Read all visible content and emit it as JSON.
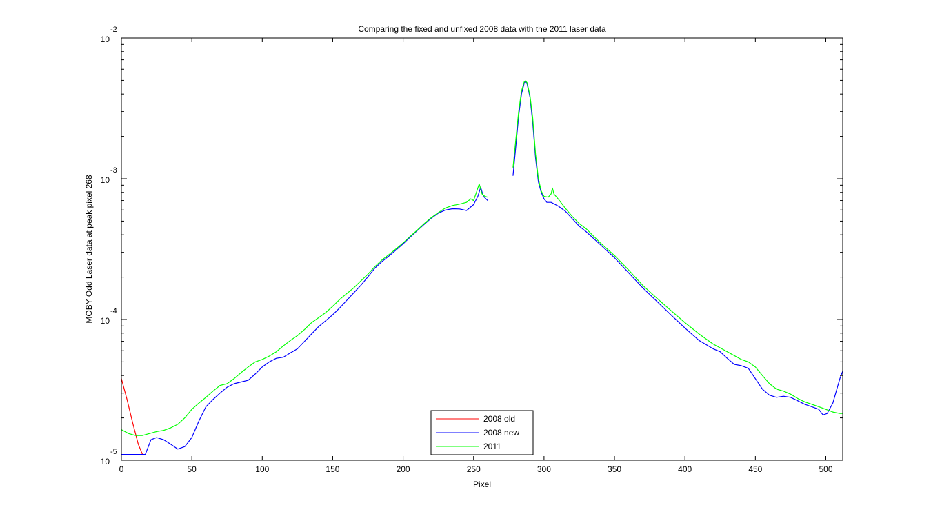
{
  "chart_data": {
    "type": "line",
    "title": "Comparing the fixed and unfixed 2008 data with the 2011 laser data",
    "xlabel": "Pixel",
    "ylabel": "MOBY Odd Laser data at peak pixel 268",
    "xlim": [
      0,
      512
    ],
    "ylim": [
      1e-05,
      0.01
    ],
    "yscale": "log",
    "grid": false,
    "legend_position": "bottom-center",
    "x_ticks": [
      0,
      50,
      100,
      150,
      200,
      250,
      300,
      350,
      400,
      450,
      500
    ],
    "x_tick_labels": [
      "0",
      "50",
      "100",
      "150",
      "200",
      "250",
      "300",
      "350",
      "400",
      "450",
      "500"
    ],
    "y_ticks": [
      {
        "value": 1e-05,
        "base": "10",
        "exponent": "-5"
      },
      {
        "value": 0.0001,
        "base": "10",
        "exponent": "-4"
      },
      {
        "value": 0.001,
        "base": "10",
        "exponent": "-3"
      },
      {
        "value": 0.01,
        "base": "10",
        "exponent": "-2"
      }
    ],
    "series": [
      {
        "name": "2008 old",
        "color": "#ff0000",
        "segments": [
          [
            [
              0,
              3.8e-05
            ],
            [
              4,
              2.7e-05
            ],
            [
              8,
              1.85e-05
            ],
            [
              12,
              1.3e-05
            ],
            [
              15,
              1.1e-05
            ],
            [
              17,
              1.1e-05
            ]
          ]
        ]
      },
      {
        "name": "2008 new",
        "color": "#0000ff",
        "segments": [
          [
            [
              0,
              1.1e-05
            ],
            [
              10,
              1.1e-05
            ],
            [
              17,
              1.1e-05
            ],
            [
              21,
              1.4e-05
            ],
            [
              25,
              1.45e-05
            ],
            [
              30,
              1.4e-05
            ],
            [
              35,
              1.3e-05
            ],
            [
              40,
              1.2e-05
            ],
            [
              45,
              1.25e-05
            ],
            [
              50,
              1.45e-05
            ],
            [
              55,
              1.9e-05
            ],
            [
              60,
              2.4e-05
            ],
            [
              65,
              2.7e-05
            ],
            [
              70,
              3e-05
            ],
            [
              75,
              3.3e-05
            ],
            [
              80,
              3.5e-05
            ],
            [
              85,
              3.6e-05
            ],
            [
              90,
              3.7e-05
            ],
            [
              95,
              4.1e-05
            ],
            [
              100,
              4.6e-05
            ],
            [
              105,
              5e-05
            ],
            [
              110,
              5.3e-05
            ],
            [
              115,
              5.4e-05
            ],
            [
              120,
              5.8e-05
            ],
            [
              125,
              6.2e-05
            ],
            [
              130,
              7e-05
            ],
            [
              135,
              7.9e-05
            ],
            [
              140,
              8.9e-05
            ],
            [
              145,
              9.8e-05
            ],
            [
              150,
              0.000108
            ],
            [
              155,
              0.000121
            ],
            [
              160,
              0.000137
            ],
            [
              165,
              0.000155
            ],
            [
              170,
              0.000175
            ],
            [
              175,
              0.000201
            ],
            [
              180,
              0.000232
            ],
            [
              185,
              0.000258
            ],
            [
              190,
              0.000283
            ],
            [
              195,
              0.000312
            ],
            [
              200,
              0.000345
            ],
            [
              205,
              0.000385
            ],
            [
              210,
              0.000428
            ],
            [
              215,
              0.000475
            ],
            [
              220,
              0.000525
            ],
            [
              225,
              0.00057
            ],
            [
              230,
              0.0006
            ],
            [
              235,
              0.000612
            ],
            [
              240,
              0.00061
            ],
            [
              245,
              0.000595
            ],
            [
              250,
              0.000655
            ],
            [
              253,
              0.00075
            ],
            [
              255,
              0.00087
            ],
            [
              257,
              0.00075
            ],
            [
              260,
              0.0007
            ]
          ],
          [
            [
              278,
              0.00105
            ],
            [
              280,
              0.0017
            ],
            [
              282,
              0.0028
            ],
            [
              284,
              0.004
            ],
            [
              286,
              0.0048
            ],
            [
              287,
              0.0049
            ],
            [
              288,
              0.0047
            ],
            [
              290,
              0.0038
            ],
            [
              292,
              0.0025
            ],
            [
              294,
              0.0014
            ],
            [
              296,
              0.00095
            ],
            [
              298,
              0.0008
            ],
            [
              300,
              0.00072
            ],
            [
              302,
              0.00068
            ],
            [
              305,
              0.00068
            ],
            [
              310,
              0.00064
            ],
            [
              315,
              0.00059
            ],
            [
              320,
              0.00052
            ],
            [
              325,
              0.00046
            ],
            [
              330,
              0.00042
            ],
            [
              340,
              0.00034
            ],
            [
              350,
              0.000275
            ],
            [
              360,
              0.000215
            ],
            [
              370,
              0.000168
            ],
            [
              380,
              0.000135
            ],
            [
              390,
              0.000108
            ],
            [
              400,
              8.7e-05
            ],
            [
              410,
              7.1e-05
            ],
            [
              420,
              6.2e-05
            ],
            [
              425,
              5.9e-05
            ],
            [
              430,
              5.3e-05
            ],
            [
              435,
              4.8e-05
            ],
            [
              440,
              4.7e-05
            ],
            [
              445,
              4.5e-05
            ],
            [
              450,
              3.8e-05
            ],
            [
              455,
              3.2e-05
            ],
            [
              460,
              2.9e-05
            ],
            [
              465,
              2.8e-05
            ],
            [
              470,
              2.85e-05
            ],
            [
              475,
              2.8e-05
            ],
            [
              480,
              2.65e-05
            ],
            [
              485,
              2.5e-05
            ],
            [
              490,
              2.4e-05
            ],
            [
              495,
              2.3e-05
            ],
            [
              498,
              2.1e-05
            ],
            [
              501,
              2.15e-05
            ],
            [
              505,
              2.55e-05
            ],
            [
              510,
              3.8e-05
            ],
            [
              512,
              4.3e-05
            ]
          ]
        ]
      },
      {
        "name": "2011",
        "color": "#00ff00",
        "segments": [
          [
            [
              0,
              1.65e-05
            ],
            [
              5,
              1.55e-05
            ],
            [
              10,
              1.5e-05
            ],
            [
              15,
              1.5e-05
            ],
            [
              20,
              1.55e-05
            ],
            [
              25,
              1.6e-05
            ],
            [
              30,
              1.63e-05
            ],
            [
              35,
              1.7e-05
            ],
            [
              40,
              1.8e-05
            ],
            [
              45,
              2e-05
            ],
            [
              50,
              2.3e-05
            ],
            [
              55,
              2.55e-05
            ],
            [
              60,
              2.8e-05
            ],
            [
              65,
              3.1e-05
            ],
            [
              70,
              3.4e-05
            ],
            [
              75,
              3.5e-05
            ],
            [
              80,
              3.8e-05
            ],
            [
              85,
              4.2e-05
            ],
            [
              90,
              4.6e-05
            ],
            [
              95,
              5e-05
            ],
            [
              100,
              5.2e-05
            ],
            [
              105,
              5.5e-05
            ],
            [
              110,
              5.9e-05
            ],
            [
              115,
              6.5e-05
            ],
            [
              120,
              7.1e-05
            ],
            [
              125,
              7.7e-05
            ],
            [
              130,
              8.5e-05
            ],
            [
              135,
              9.5e-05
            ],
            [
              140,
              0.000103
            ],
            [
              145,
              0.000112
            ],
            [
              150,
              0.000124
            ],
            [
              155,
              0.000139
            ],
            [
              160,
              0.000153
            ],
            [
              165,
              0.000168
            ],
            [
              170,
              0.000188
            ],
            [
              175,
              0.00021
            ],
            [
              180,
              0.000238
            ],
            [
              185,
              0.000265
            ],
            [
              190,
              0.00029
            ],
            [
              195,
              0.000318
            ],
            [
              200,
              0.00035
            ],
            [
              205,
              0.00039
            ],
            [
              210,
              0.000432
            ],
            [
              215,
              0.00048
            ],
            [
              220,
              0.00053
            ],
            [
              225,
              0.000575
            ],
            [
              230,
              0.00062
            ],
            [
              235,
              0.000645
            ],
            [
              240,
              0.00066
            ],
            [
              245,
              0.00068
            ],
            [
              248,
              0.00072
            ],
            [
              250,
              0.0007
            ],
            [
              252,
              0.0008
            ],
            [
              254,
              0.00092
            ],
            [
              256,
              0.00078
            ],
            [
              258,
              0.00075
            ],
            [
              260,
              0.00074
            ]
          ],
          [
            [
              278,
              0.0012
            ],
            [
              280,
              0.0019
            ],
            [
              282,
              0.003
            ],
            [
              284,
              0.0042
            ],
            [
              286,
              0.0049
            ],
            [
              287,
              0.00495
            ],
            [
              288,
              0.0048
            ],
            [
              290,
              0.0039
            ],
            [
              292,
              0.0027
            ],
            [
              294,
              0.0015
            ],
            [
              296,
              0.001
            ],
            [
              298,
              0.00082
            ],
            [
              300,
              0.00075
            ],
            [
              303,
              0.00074
            ],
            [
              305,
              0.00078
            ],
            [
              306,
              0.00086
            ],
            [
              307,
              0.00078
            ],
            [
              310,
              0.00072
            ],
            [
              315,
              0.00062
            ],
            [
              320,
              0.00054
            ],
            [
              325,
              0.00048
            ],
            [
              330,
              0.00044
            ],
            [
              340,
              0.00035
            ],
            [
              350,
              0.000285
            ],
            [
              360,
              0.000225
            ],
            [
              370,
              0.000175
            ],
            [
              380,
              0.000142
            ],
            [
              390,
              0.000116
            ],
            [
              400,
              9.5e-05
            ],
            [
              410,
              7.9e-05
            ],
            [
              420,
              6.7e-05
            ],
            [
              430,
              5.9e-05
            ],
            [
              440,
              5.2e-05
            ],
            [
              445,
              5e-05
            ],
            [
              450,
              4.6e-05
            ],
            [
              455,
              4e-05
            ],
            [
              460,
              3.5e-05
            ],
            [
              465,
              3.2e-05
            ],
            [
              470,
              3.1e-05
            ],
            [
              475,
              2.95e-05
            ],
            [
              480,
              2.75e-05
            ],
            [
              485,
              2.6e-05
            ],
            [
              490,
              2.5e-05
            ],
            [
              495,
              2.4e-05
            ],
            [
              500,
              2.3e-05
            ],
            [
              505,
              2.2e-05
            ],
            [
              510,
              2.15e-05
            ],
            [
              512,
              2.15e-05
            ]
          ]
        ]
      }
    ]
  }
}
